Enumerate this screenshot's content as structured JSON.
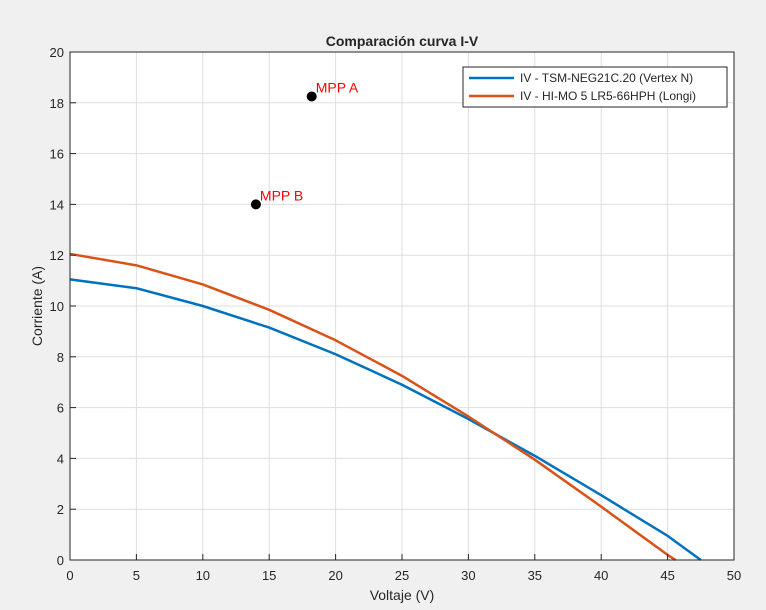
{
  "chart_data": {
    "type": "line",
    "title": "Comparación curva I-V",
    "xlabel": "Voltaje (V)",
    "ylabel": "Corriente (A)",
    "xlim": [
      0,
      50
    ],
    "ylim": [
      0,
      20
    ],
    "xticks": [
      "0",
      "5",
      "10",
      "15",
      "20",
      "25",
      "30",
      "35",
      "40",
      "45",
      "50"
    ],
    "yticks": [
      "0",
      "2",
      "4",
      "6",
      "8",
      "10",
      "12",
      "14",
      "16",
      "18",
      "20"
    ],
    "grid": true,
    "legend_position": "top-right",
    "series": [
      {
        "name": "IV - TSM-NEG21C.20 (Vertex N)",
        "color": "#0072BD",
        "x": [
          0,
          5,
          10,
          15,
          20,
          25,
          30,
          35,
          40,
          45,
          47.5
        ],
        "y": [
          11.05,
          10.7,
          10.0,
          9.15,
          8.1,
          6.9,
          5.55,
          4.1,
          2.55,
          0.95,
          0
        ]
      },
      {
        "name": "IV - HI-MO 5 LR5-66HPH (Longi)",
        "color": "#D95319",
        "x": [
          0,
          5,
          10,
          15,
          20,
          25,
          30,
          35,
          40,
          45,
          45.6
        ],
        "y": [
          12.05,
          11.6,
          10.85,
          9.85,
          8.65,
          7.25,
          5.65,
          3.95,
          2.1,
          0.2,
          0
        ]
      }
    ],
    "annotations": [
      {
        "label": "MPP A",
        "x": 18.2,
        "y": 18.25,
        "color": "#ff0000",
        "marker_color": "#000000"
      },
      {
        "label": "MPP B",
        "x": 14.0,
        "y": 14.0,
        "color": "#ff0000",
        "marker_color": "#000000"
      }
    ]
  }
}
